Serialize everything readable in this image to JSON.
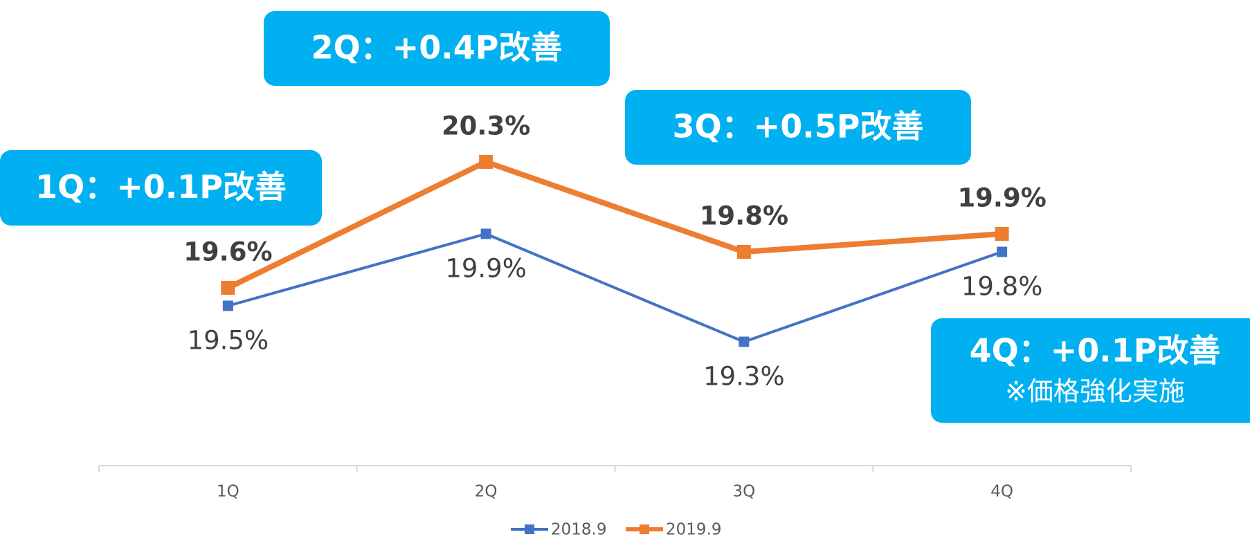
{
  "chart_data": {
    "type": "line",
    "categories": [
      "1Q",
      "2Q",
      "3Q",
      "4Q"
    ],
    "series": [
      {
        "name": "2018.9",
        "color": "#4472c4",
        "values": [
          19.5,
          19.9,
          19.3,
          19.8
        ],
        "value_labels": [
          "19.5%",
          "19.9%",
          "19.3%",
          "19.8%"
        ]
      },
      {
        "name": "2019.9",
        "color": "#ed7d31",
        "values": [
          19.6,
          20.3,
          19.8,
          19.9
        ],
        "value_labels": [
          "19.6%",
          "20.3%",
          "19.8%",
          "19.9%"
        ]
      }
    ],
    "annotations": [
      {
        "text": "1Q：+0.1P改善"
      },
      {
        "text": "2Q：+0.4P改善"
      },
      {
        "text": "3Q：+0.5P改善"
      },
      {
        "text": "4Q：+0.1P改善",
        "note": "※価格強化実施"
      }
    ],
    "legend": "bottom"
  }
}
